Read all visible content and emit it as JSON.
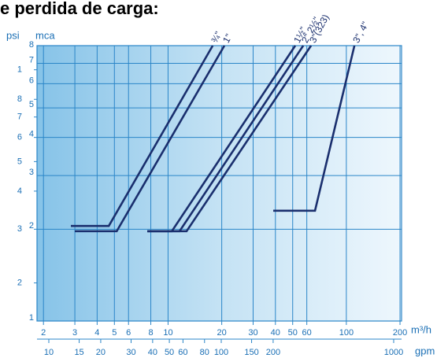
{
  "chart_data": {
    "type": "line",
    "title": "e perdida de carga:",
    "ylabel": "mca",
    "y2label": "psi",
    "xlabel": "m³/h",
    "x2label": "gpm",
    "xscale": "log",
    "yscale": "log",
    "grid": true,
    "color": "#1a2f6e",
    "xlim": [
      1.84,
      204
    ],
    "xticks": [
      2,
      3,
      4,
      5,
      6,
      8,
      10,
      20,
      30,
      40,
      50,
      60,
      100,
      200
    ],
    "x2lim": [
      8.54,
      1111
    ],
    "x2ticks": [
      10,
      15,
      20,
      30,
      40,
      50,
      60,
      80,
      100,
      150,
      200,
      1000
    ],
    "ylim": [
      1,
      8
    ],
    "yticks": [
      1,
      2,
      3,
      4,
      5,
      6,
      7,
      8
    ],
    "y2lim": [
      1.5,
      12
    ],
    "y2ticks": [
      2,
      3,
      4,
      5,
      6,
      7,
      8,
      {
        "value": 10,
        "label": "1"
      }
    ],
    "series": [
      {
        "name": "¾\"",
        "color": "#1a2f6e",
        "x": [
          2.85,
          4.65,
          17.8
        ],
        "values": [
          2.05,
          2.05,
          8
        ]
      },
      {
        "name": "1\"",
        "color": "#1a2f6e",
        "x": [
          3.0,
          5.15,
          20.7
        ],
        "values": [
          1.97,
          1.97,
          8
        ]
      },
      {
        "name": "1½\"",
        "color": "#1a2f6e",
        "x": [
          7.65,
          10.5,
          51.7
        ],
        "values": [
          1.97,
          1.97,
          8
        ]
      },
      {
        "name": "2\" 2½\"",
        "color": "#1a2f6e",
        "x": [
          7.65,
          11.6,
          57.3
        ],
        "values": [
          1.97,
          1.97,
          8
        ]
      },
      {
        "name": "3\"(323)",
        "color": "#1a2f6e",
        "x": [
          7.65,
          12.7,
          63.4
        ],
        "values": [
          1.97,
          1.97,
          8
        ]
      },
      {
        "name": "3\", 4\"",
        "color": "#1a2f6e",
        "x": [
          38.9,
          66.7,
          111
        ],
        "values": [
          2.3,
          2.3,
          8
        ]
      }
    ]
  }
}
